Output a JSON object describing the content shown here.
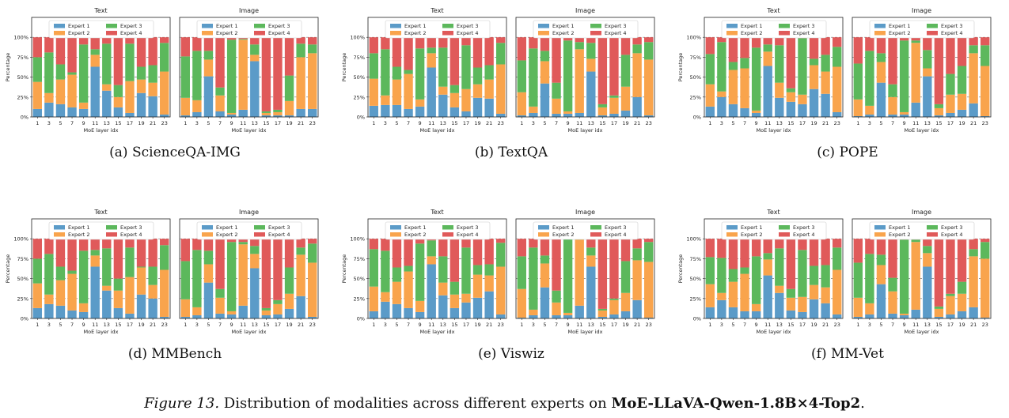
{
  "figure_caption": {
    "label": "Figure 13.",
    "text": "Distribution of modalities across different experts on",
    "model": "MoE-LLaVA-Qwen-1.8B×4-Top2",
    "end": "."
  },
  "colors": {
    "expert1": "#5b9bc8",
    "expert2": "#f9a44c",
    "expert3": "#5cb85c",
    "expert4": "#e05a5a"
  },
  "panel_titles": {
    "text": "Text",
    "image": "Image"
  },
  "legend": [
    "Expert 1",
    "Expert 2",
    "Expert 3",
    "Expert 4"
  ],
  "axis": {
    "ylabel": "Percentage",
    "xlabel": "MoE layer idx",
    "yticks": [
      "0%",
      "25%",
      "50%",
      "75%",
      "100%"
    ],
    "xticks": [
      "1",
      "3",
      "5",
      "7",
      "9",
      "11",
      "13",
      "15",
      "17",
      "19",
      "21",
      "23"
    ]
  },
  "chart_data": [
    {
      "caption": "(a) ScienceQA-IMG",
      "type": "bar",
      "stacked": true,
      "x": [
        1,
        3,
        5,
        7,
        9,
        11,
        13,
        15,
        17,
        19,
        21,
        23
      ],
      "text": {
        "e1": [
          10,
          18,
          16,
          12,
          10,
          63,
          33,
          12,
          5,
          30,
          26,
          3
        ],
        "e2": [
          34,
          12,
          31,
          41,
          8,
          15,
          8,
          13,
          40,
          17,
          17,
          54
        ],
        "e3": [
          31,
          51,
          19,
          3,
          73,
          7,
          51,
          15,
          47,
          16,
          22,
          36
        ],
        "e4": [
          25,
          19,
          34,
          44,
          9,
          15,
          8,
          60,
          8,
          37,
          35,
          7
        ]
      },
      "image": {
        "e1": [
          2,
          6,
          51,
          7,
          3,
          9,
          70,
          2,
          2,
          2,
          10,
          10
        ],
        "e2": [
          22,
          15,
          21,
          20,
          2,
          88,
          8,
          3,
          4,
          18,
          65,
          70
        ],
        "e3": [
          52,
          62,
          11,
          10,
          92,
          1,
          13,
          2,
          3,
          32,
          17,
          11
        ],
        "e4": [
          24,
          17,
          17,
          63,
          3,
          2,
          9,
          93,
          91,
          48,
          8,
          9
        ]
      }
    },
    {
      "caption": "(b) TextQA",
      "type": "bar",
      "stacked": true,
      "x": [
        1,
        3,
        5,
        7,
        9,
        11,
        13,
        15,
        17,
        19,
        21,
        23
      ],
      "text": {
        "e1": [
          14,
          15,
          15,
          10,
          13,
          62,
          28,
          12,
          7,
          24,
          23,
          4
        ],
        "e2": [
          34,
          12,
          32,
          44,
          9,
          18,
          10,
          18,
          28,
          17,
          24,
          62
        ],
        "e3": [
          32,
          58,
          16,
          5,
          64,
          7,
          49,
          10,
          55,
          21,
          18,
          27
        ],
        "e4": [
          20,
          15,
          37,
          41,
          14,
          13,
          13,
          60,
          10,
          38,
          35,
          7
        ]
      },
      "image": {
        "e1": [
          2,
          5,
          42,
          4,
          4,
          5,
          57,
          2,
          4,
          8,
          25,
          2
        ],
        "e2": [
          29,
          8,
          28,
          19,
          3,
          80,
          16,
          10,
          20,
          30,
          55,
          70
        ],
        "e3": [
          40,
          73,
          13,
          20,
          89,
          9,
          20,
          4,
          3,
          40,
          11,
          22
        ],
        "e4": [
          29,
          14,
          17,
          57,
          4,
          6,
          7,
          84,
          73,
          22,
          9,
          6
        ]
      }
    },
    {
      "caption": "(c) POPE",
      "type": "bar",
      "stacked": true,
      "x": [
        1,
        3,
        5,
        7,
        9,
        11,
        13,
        15,
        17,
        19,
        21,
        23
      ],
      "text": {
        "e1": [
          13,
          25,
          16,
          11,
          5,
          64,
          24,
          19,
          16,
          35,
          29,
          6
        ],
        "e2": [
          28,
          7,
          43,
          50,
          3,
          18,
          19,
          12,
          12,
          30,
          28,
          57
        ],
        "e3": [
          38,
          62,
          10,
          13,
          79,
          9,
          47,
          5,
          71,
          8,
          21,
          25
        ],
        "e4": [
          21,
          6,
          31,
          26,
          13,
          9,
          10,
          64,
          1,
          27,
          22,
          12
        ]
      },
      "image": {
        "e1": [
          1,
          3,
          43,
          3,
          3,
          18,
          51,
          2,
          5,
          9,
          17,
          1
        ],
        "e2": [
          21,
          11,
          26,
          22,
          3,
          75,
          10,
          9,
          23,
          20,
          63,
          63
        ],
        "e3": [
          45,
          69,
          11,
          16,
          90,
          3,
          23,
          5,
          26,
          35,
          10,
          26
        ],
        "e4": [
          33,
          17,
          20,
          59,
          4,
          4,
          16,
          84,
          46,
          36,
          10,
          10
        ]
      }
    },
    {
      "caption": "(d) MMBench",
      "type": "bar",
      "stacked": true,
      "x": [
        1,
        3,
        5,
        7,
        9,
        11,
        13,
        15,
        17,
        19,
        21,
        23
      ],
      "text": {
        "e1": [
          13,
          18,
          16,
          10,
          8,
          65,
          35,
          13,
          6,
          30,
          25,
          2
        ],
        "e2": [
          31,
          12,
          32,
          46,
          11,
          14,
          6,
          22,
          46,
          34,
          17,
          59
        ],
        "e3": [
          31,
          51,
          17,
          4,
          66,
          7,
          47,
          15,
          37,
          1,
          23,
          31
        ],
        "e4": [
          25,
          19,
          35,
          40,
          15,
          14,
          12,
          50,
          11,
          35,
          35,
          8
        ]
      },
      "image": {
        "e1": [
          2,
          4,
          45,
          6,
          5,
          16,
          63,
          4,
          5,
          12,
          28,
          2
        ],
        "e2": [
          22,
          10,
          23,
          20,
          4,
          77,
          18,
          6,
          13,
          19,
          52,
          68
        ],
        "e3": [
          48,
          72,
          17,
          11,
          87,
          3,
          10,
          3,
          5,
          33,
          9,
          24
        ],
        "e4": [
          28,
          14,
          15,
          63,
          4,
          4,
          9,
          87,
          77,
          36,
          11,
          6
        ]
      }
    },
    {
      "caption": "(e) Viswiz",
      "type": "bar",
      "stacked": true,
      "x": [
        1,
        3,
        5,
        7,
        9,
        11,
        13,
        15,
        17,
        19,
        21,
        23
      ],
      "text": {
        "e1": [
          9,
          21,
          18,
          13,
          8,
          68,
          29,
          13,
          20,
          26,
          34,
          5
        ],
        "e2": [
          31,
          12,
          28,
          46,
          14,
          10,
          16,
          17,
          11,
          29,
          20,
          60
        ],
        "e3": [
          47,
          52,
          18,
          7,
          72,
          20,
          33,
          16,
          58,
          12,
          14,
          30
        ],
        "e4": [
          13,
          15,
          36,
          34,
          6,
          2,
          22,
          54,
          11,
          33,
          32,
          5
        ]
      },
      "image": {
        "e1": [
          1,
          4,
          39,
          4,
          4,
          16,
          65,
          2,
          5,
          9,
          23,
          1
        ],
        "e2": [
          36,
          7,
          30,
          16,
          3,
          83,
          14,
          8,
          18,
          23,
          50,
          70
        ],
        "e3": [
          41,
          78,
          10,
          15,
          93,
          1,
          10,
          2,
          2,
          40,
          15,
          25
        ],
        "e4": [
          22,
          11,
          21,
          65,
          0,
          0,
          11,
          88,
          75,
          28,
          12,
          4
        ]
      }
    },
    {
      "caption": "(f) MM-Vet",
      "type": "bar",
      "stacked": true,
      "x": [
        1,
        3,
        5,
        7,
        9,
        11,
        13,
        15,
        17,
        19,
        21,
        23
      ],
      "text": {
        "e1": [
          14,
          23,
          14,
          9,
          9,
          54,
          32,
          10,
          8,
          24,
          19,
          5
        ],
        "e2": [
          29,
          9,
          32,
          47,
          9,
          20,
          9,
          16,
          19,
          18,
          20,
          56
        ],
        "e3": [
          34,
          44,
          16,
          8,
          60,
          8,
          47,
          11,
          59,
          24,
          28,
          28
        ],
        "e4": [
          23,
          24,
          38,
          36,
          22,
          18,
          12,
          63,
          14,
          34,
          33,
          11
        ]
      },
      "image": {
        "e1": [
          2,
          5,
          43,
          6,
          4,
          11,
          65,
          2,
          5,
          9,
          14,
          1
        ],
        "e2": [
          24,
          14,
          24,
          28,
          2,
          85,
          17,
          10,
          23,
          22,
          64,
          74
        ],
        "e3": [
          44,
          62,
          13,
          17,
          93,
          3,
          9,
          3,
          3,
          15,
          9,
          21
        ],
        "e4": [
          30,
          19,
          20,
          49,
          1,
          1,
          9,
          85,
          69,
          54,
          13,
          4
        ]
      }
    }
  ]
}
